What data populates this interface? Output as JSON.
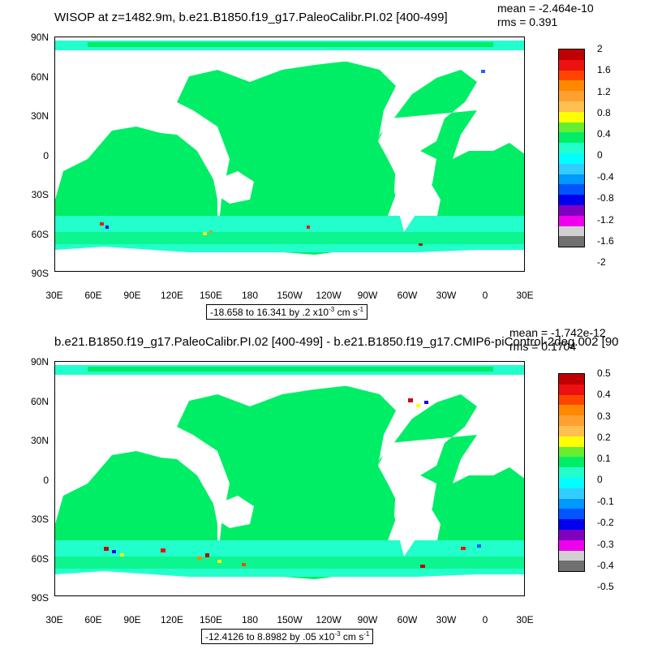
{
  "panels": [
    {
      "title": "WISOP at z=1482.9m, b.e21.B1850.f19_g17.PaleoCalibr.PI.02 [400-499]",
      "mean": "mean = -2.464e-10",
      "rms": "rms = 0.391",
      "range_text": "-18.658 to 16.341 by .2 x10",
      "range_exp": "-3",
      "range_unit": " cm s",
      "range_unit_exp": "-1",
      "colorbar_labels": [
        "2",
        "1.6",
        "1.2",
        "0.8",
        "0.4",
        "0",
        "-0.4",
        "-0.8",
        "-1.2",
        "-1.6",
        "-2"
      ]
    },
    {
      "title": "b.e21.B1850.f19_g17.PaleoCalibr.PI.02 [400-499] - b.e21.B1850.f19_g17.CMIP6-piControl-2deg.002 [90",
      "mean": "mean = -1.742e-12",
      "rms": "rms = 0.1704",
      "range_text": "-12.4126 to 8.8982 by .05 x10",
      "range_exp": "-3",
      "range_unit": " cm s",
      "range_unit_exp": "-1",
      "colorbar_labels": [
        "0.5",
        "0.4",
        "0.3",
        "0.2",
        "0.1",
        "0",
        "-0.1",
        "-0.2",
        "-0.3",
        "-0.4",
        "-0.5"
      ]
    }
  ],
  "lat_labels": [
    "90N",
    "60N",
    "30N",
    "0",
    "30S",
    "60S",
    "90S"
  ],
  "lon_labels": [
    "30E",
    "60E",
    "90E",
    "120E",
    "150E",
    "180",
    "150W",
    "120W",
    "90W",
    "60W",
    "30W",
    "0",
    "30E"
  ],
  "colors": {
    "colorbar_top_to_bottom": [
      "#c00000",
      "#ee1111",
      "#ff4400",
      "#ff8800",
      "#ffa030",
      "#ffc050",
      "#ffff00",
      "#66ee33",
      "#00ee66",
      "#22ffcc",
      "#00ffff",
      "#33ccff",
      "#0099ff",
      "#0055ff",
      "#0000ee",
      "#8000c0",
      "#ee00ee",
      "#d0d0d0",
      "#707070"
    ],
    "ocean_main": "#00ee66",
    "ocean_alt": "#22ffcc",
    "land": "#ffffff"
  }
}
